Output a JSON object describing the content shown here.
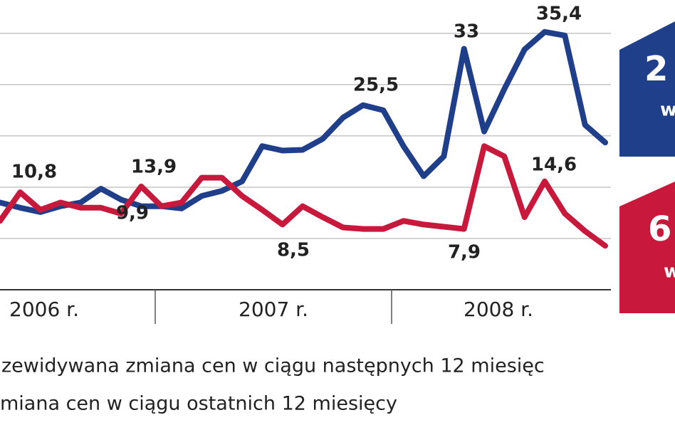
{
  "chart_data": {
    "type": "line",
    "categories": [
      null,
      null,
      null,
      null,
      null,
      null,
      null,
      null,
      null,
      null,
      null,
      null,
      null,
      null,
      null,
      null,
      null,
      null,
      null,
      null,
      null,
      null,
      null,
      null,
      null,
      null,
      null,
      null,
      null,
      null,
      null
    ],
    "series": [
      {
        "color": "#1f3f8a",
        "values": [
          11.9,
          11.2,
          10.6,
          11.4,
          11.9,
          13.8,
          12.3,
          11.4,
          11.4,
          11.1,
          12.8,
          13.5,
          14.8,
          19.6,
          19.0,
          19.1,
          20.6,
          23.5,
          25.2,
          24.5,
          19.6,
          15.5,
          18.2,
          32.9,
          21.6,
          27.4,
          32.8,
          35.2,
          34.7,
          22.5,
          20.1
        ]
      },
      {
        "color": "#c8193c",
        "values": [
          9.4,
          13.3,
          10.9,
          11.9,
          11.2,
          11.2,
          10.4,
          14.1,
          11.4,
          11.9,
          15.3,
          15.3,
          12.8,
          10.9,
          8.9,
          11.4,
          9.9,
          8.5,
          8.3,
          8.3,
          9.4,
          8.9,
          8.6,
          8.3,
          19.6,
          18.2,
          9.9,
          14.8,
          10.4,
          8.0,
          6.0
        ]
      }
    ],
    "ylim": [
      0,
      39
    ],
    "yticks": [
      7,
      14,
      21,
      28,
      35
    ],
    "grid": true,
    "year_labels": [
      "2006 r.",
      "2007 r.",
      "2008 r."
    ],
    "annotations": [
      "10,8",
      "13,9",
      "9,9",
      "8,5",
      "25,5",
      "33",
      "35,4",
      "7,9",
      "14,6"
    ],
    "badges": [
      {
        "big": "2",
        "small": "w"
      },
      {
        "big": "6",
        "small": "w"
      }
    ],
    "legend": [
      "zewidywana zmiana cen w ciągu następnych 12 miesięc",
      "miana cen w ciągu ostatnich 12 miesięcy"
    ]
  }
}
